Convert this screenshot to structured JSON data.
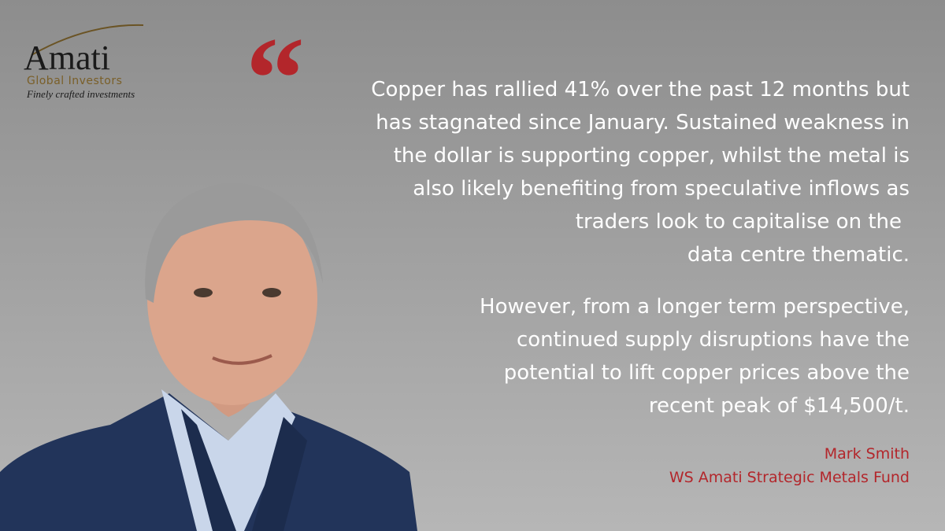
{
  "logo": {
    "name": "Amati",
    "subtitle": "Global Investors",
    "tagline": "Finely crafted investments"
  },
  "quote": {
    "paragraphs": [
      [
        "Copper has rallied 41% over the past 12 months but",
        "has stagnated since January. Sustained weakness in",
        "the dollar is supporting copper, whilst the metal is",
        "also likely benefiting from speculative inflows as",
        "traders look to capitalise on the",
        "data centre thematic."
      ],
      [
        "However, from a longer term perspective,",
        "continued supply disruptions have the",
        "potential to lift copper prices above the",
        "recent peak of $14,500/t."
      ]
    ]
  },
  "attribution": {
    "name": "Mark Smith",
    "fund": "WS Amati Strategic Metals Fund"
  }
}
